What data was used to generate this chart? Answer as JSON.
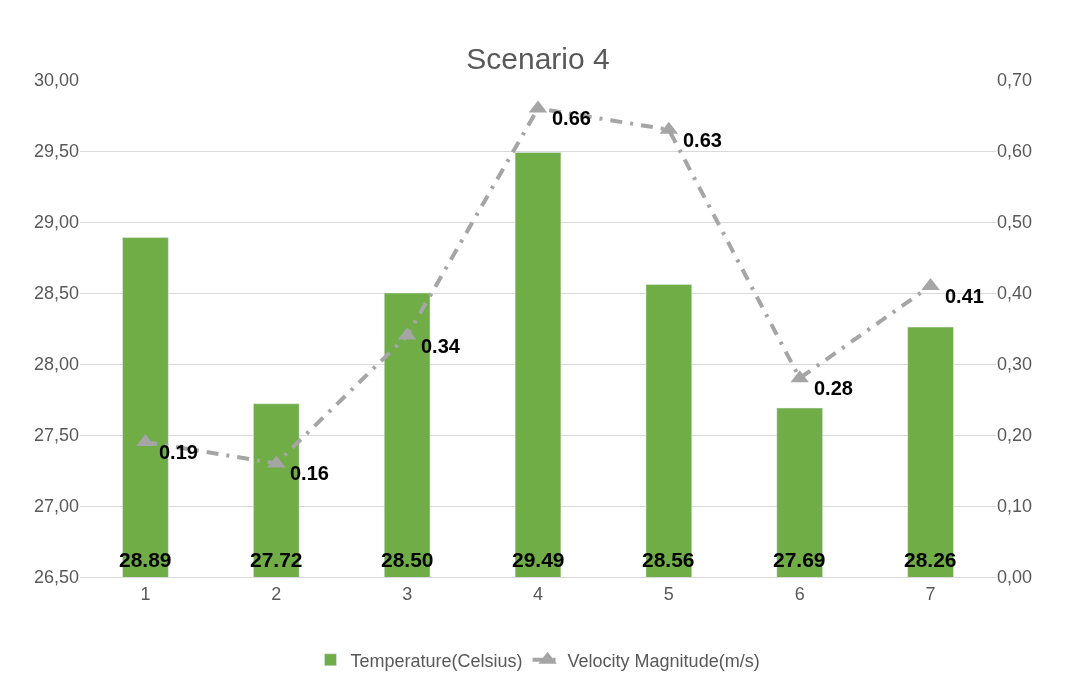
{
  "chart_data": {
    "type": "bar",
    "title": "Scenario 4",
    "categories": [
      "1",
      "2",
      "3",
      "4",
      "5",
      "6",
      "7"
    ],
    "series": [
      {
        "name": "Temperature(Celsius)",
        "color": "#70ad47",
        "values": [
          28.89,
          27.72,
          28.5,
          29.49,
          28.56,
          27.69,
          28.26
        ],
        "value_labels": [
          "28.89",
          "27.72",
          "28.50",
          "29.49",
          "28.56",
          "27.69",
          "28.26"
        ]
      },
      {
        "name": "Velocity Magnitude(m/s)",
        "type": "line",
        "axis": "y2",
        "color": "#a5a5a5",
        "marker": "triangle",
        "line_style": "dashed",
        "values": [
          0.19,
          0.16,
          0.34,
          0.66,
          0.63,
          0.28,
          0.41
        ],
        "value_labels": [
          "0.19",
          "0.16",
          "0.34",
          "0.66",
          "0.63",
          "0.28",
          "0.41"
        ]
      }
    ],
    "ylim": [
      26.5,
      30
    ],
    "yticks": [
      {
        "value": 26.5,
        "label": "26,50"
      },
      {
        "value": 27,
        "label": "27,00"
      },
      {
        "value": 27.5,
        "label": "27,50"
      },
      {
        "value": 28,
        "label": "28,00"
      },
      {
        "value": 28.5,
        "label": "28,50"
      },
      {
        "value": 29,
        "label": "29,00"
      },
      {
        "value": 29.5,
        "label": "29,50"
      },
      {
        "value": 30,
        "label": "30,00"
      }
    ],
    "y2lim": [
      0,
      0.7
    ],
    "y2ticks": [
      {
        "value": 0,
        "label": "0,00"
      },
      {
        "value": 0.1,
        "label": "0,10"
      },
      {
        "value": 0.2,
        "label": "0,20"
      },
      {
        "value": 0.3,
        "label": "0,30"
      },
      {
        "value": 0.4,
        "label": "0,40"
      },
      {
        "value": 0.5,
        "label": "0,50"
      },
      {
        "value": 0.6,
        "label": "0,60"
      },
      {
        "value": 0.7,
        "label": "0,70"
      }
    ],
    "grid": "y",
    "legend": "bottom"
  }
}
